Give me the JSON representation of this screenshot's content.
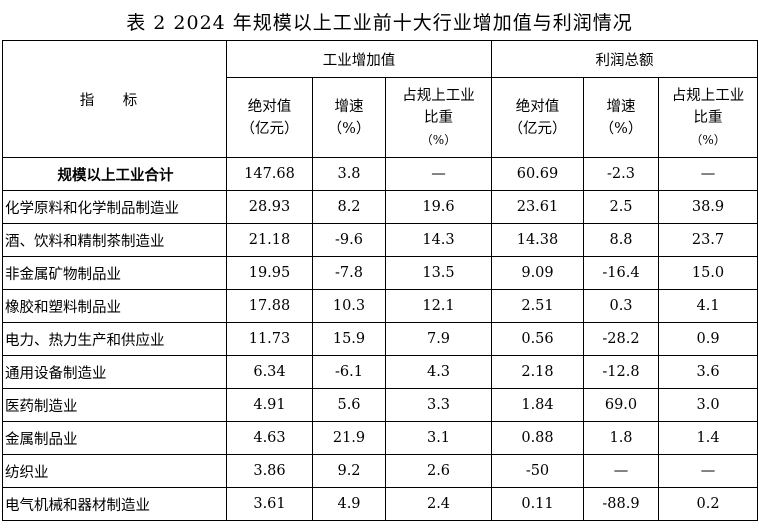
{
  "title": "表 2   2024 年规模以上工业前十大行业增加值与利润情况",
  "header": {
    "indicator": "指 标",
    "group1": "工业增加值",
    "group2": "利润总额",
    "sub": {
      "abs_line1": "绝对值",
      "abs_line2": "（亿元）",
      "growth_line1": "增速",
      "growth_line2": "（%）",
      "share_line1": "占规上工业",
      "share_line2": "比重",
      "share_line3": "（%）"
    }
  },
  "rows": [
    {
      "name": "规模以上工业合计",
      "va_abs": "147.68",
      "va_growth": "3.8",
      "va_share": "—",
      "p_abs": "60.69",
      "p_growth": "-2.3",
      "p_share": "—"
    },
    {
      "name": "化学原料和化学制品制造业",
      "va_abs": "28.93",
      "va_growth": "8.2",
      "va_share": "19.6",
      "p_abs": "23.61",
      "p_growth": "2.5",
      "p_share": "38.9"
    },
    {
      "name": "酒、饮料和精制茶制造业",
      "va_abs": "21.18",
      "va_growth": "-9.6",
      "va_share": "14.3",
      "p_abs": "14.38",
      "p_growth": "8.8",
      "p_share": "23.7"
    },
    {
      "name": "非金属矿物制品业",
      "va_abs": "19.95",
      "va_growth": "-7.8",
      "va_share": "13.5",
      "p_abs": "9.09",
      "p_growth": "-16.4",
      "p_share": "15.0"
    },
    {
      "name": "橡胶和塑料制品业",
      "va_abs": "17.88",
      "va_growth": "10.3",
      "va_share": "12.1",
      "p_abs": "2.51",
      "p_growth": "0.3",
      "p_share": "4.1"
    },
    {
      "name": "电力、热力生产和供应业",
      "va_abs": "11.73",
      "va_growth": "15.9",
      "va_share": "7.9",
      "p_abs": "0.56",
      "p_growth": "-28.2",
      "p_share": "0.9"
    },
    {
      "name": "通用设备制造业",
      "va_abs": "6.34",
      "va_growth": "-6.1",
      "va_share": "4.3",
      "p_abs": "2.18",
      "p_growth": "-12.8",
      "p_share": "3.6"
    },
    {
      "name": "医药制造业",
      "va_abs": "4.91",
      "va_growth": "5.6",
      "va_share": "3.3",
      "p_abs": "1.84",
      "p_growth": "69.0",
      "p_share": "3.0"
    },
    {
      "name": "金属制品业",
      "va_abs": "4.63",
      "va_growth": "21.9",
      "va_share": "3.1",
      "p_abs": "0.88",
      "p_growth": "1.8",
      "p_share": "1.4"
    },
    {
      "name": "纺织业",
      "va_abs": "3.86",
      "va_growth": "9.2",
      "va_share": "2.6",
      "p_abs": "-50",
      "p_growth": "—",
      "p_share": "—"
    },
    {
      "name": "电气机械和器材制造业",
      "va_abs": "3.61",
      "va_growth": "4.9",
      "va_share": "2.4",
      "p_abs": "0.11",
      "p_growth": "-88.9",
      "p_share": "0.2"
    }
  ]
}
